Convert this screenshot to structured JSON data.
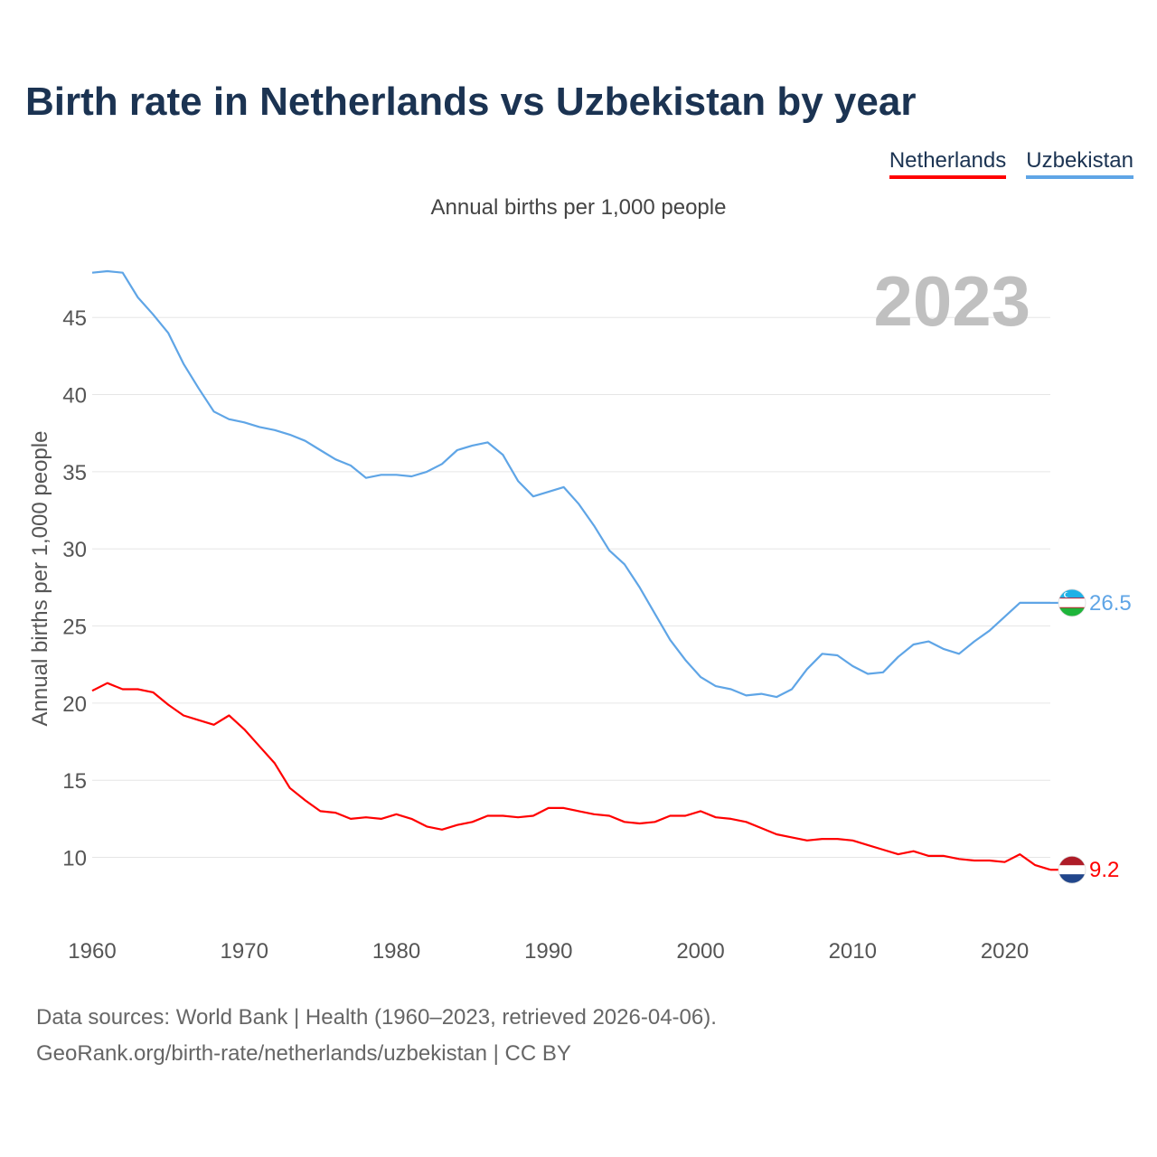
{
  "header": {
    "title": "Birth rate in Netherlands vs Uzbekistan by year"
  },
  "legend": {
    "items": [
      "Netherlands",
      "Uzbekistan"
    ]
  },
  "footer": {
    "line1": "Data sources: World Bank | Health (1960–2023, retrieved 2026-04-06).",
    "line2": "GeoRank.org/birth-rate/netherlands/uzbekistan | CC BY"
  },
  "colors": {
    "netherlands": "#ff0000",
    "uzbekistan": "#5fa5e6",
    "title": "#1b3352",
    "year_watermark": "#c0c0c0"
  },
  "chart_data": {
    "type": "line",
    "title": "Birth rate in Netherlands vs Uzbekistan by year",
    "subtitle": "Annual births per 1,000 people",
    "ylabel": "Annual births per 1,000 people",
    "xlabel": "",
    "year_label": "2023",
    "x_ticks": [
      1960,
      1970,
      1980,
      1990,
      2000,
      2010,
      2020
    ],
    "y_ticks": [
      10,
      15,
      20,
      25,
      30,
      35,
      40,
      45
    ],
    "xlim": [
      1960,
      2023
    ],
    "ylim": [
      6.4,
      48
    ],
    "grid": true,
    "x": [
      1960,
      1961,
      1962,
      1963,
      1964,
      1965,
      1966,
      1967,
      1968,
      1969,
      1970,
      1971,
      1972,
      1973,
      1974,
      1975,
      1976,
      1977,
      1978,
      1979,
      1980,
      1981,
      1982,
      1983,
      1984,
      1985,
      1986,
      1987,
      1988,
      1989,
      1990,
      1991,
      1992,
      1993,
      1994,
      1995,
      1996,
      1997,
      1998,
      1999,
      2000,
      2001,
      2002,
      2003,
      2004,
      2005,
      2006,
      2007,
      2008,
      2009,
      2010,
      2011,
      2012,
      2013,
      2014,
      2015,
      2016,
      2017,
      2018,
      2019,
      2020,
      2021,
      2022,
      2023
    ],
    "series": [
      {
        "name": "Netherlands",
        "color": "#ff0000",
        "end_label": "9.2",
        "icon": "netherlands-flag-icon",
        "values": [
          20.8,
          21.3,
          20.9,
          20.9,
          20.7,
          19.9,
          19.2,
          18.9,
          18.6,
          19.2,
          18.3,
          17.2,
          16.1,
          14.5,
          13.7,
          13.0,
          12.9,
          12.5,
          12.6,
          12.5,
          12.8,
          12.5,
          12.0,
          11.8,
          12.1,
          12.3,
          12.7,
          12.7,
          12.6,
          12.7,
          13.2,
          13.2,
          13.0,
          12.8,
          12.7,
          12.3,
          12.2,
          12.3,
          12.7,
          12.7,
          13.0,
          12.6,
          12.5,
          12.3,
          11.9,
          11.5,
          11.3,
          11.1,
          11.2,
          11.2,
          11.1,
          10.8,
          10.5,
          10.2,
          10.4,
          10.1,
          10.1,
          9.9,
          9.8,
          9.8,
          9.7,
          10.2,
          9.5,
          9.2
        ]
      },
      {
        "name": "Uzbekistan",
        "color": "#5fa5e6",
        "end_label": "26.5",
        "icon": "uzbekistan-flag-icon",
        "values": [
          47.9,
          48.0,
          47.9,
          46.3,
          45.2,
          44.0,
          42.0,
          40.4,
          38.9,
          38.4,
          38.2,
          37.9,
          37.7,
          37.4,
          37.0,
          36.4,
          35.8,
          35.4,
          34.6,
          34.8,
          34.8,
          34.7,
          35.0,
          35.5,
          36.4,
          36.7,
          36.9,
          36.1,
          34.4,
          33.4,
          33.7,
          34.0,
          32.9,
          31.5,
          29.9,
          29.0,
          27.5,
          25.8,
          24.1,
          22.8,
          21.7,
          21.1,
          20.9,
          20.5,
          20.6,
          20.4,
          20.9,
          22.2,
          23.2,
          23.1,
          22.4,
          21.9,
          22.0,
          23.0,
          23.8,
          24.0,
          23.5,
          23.2,
          24.0,
          24.7,
          25.6,
          26.5,
          26.5,
          26.5
        ]
      }
    ]
  }
}
